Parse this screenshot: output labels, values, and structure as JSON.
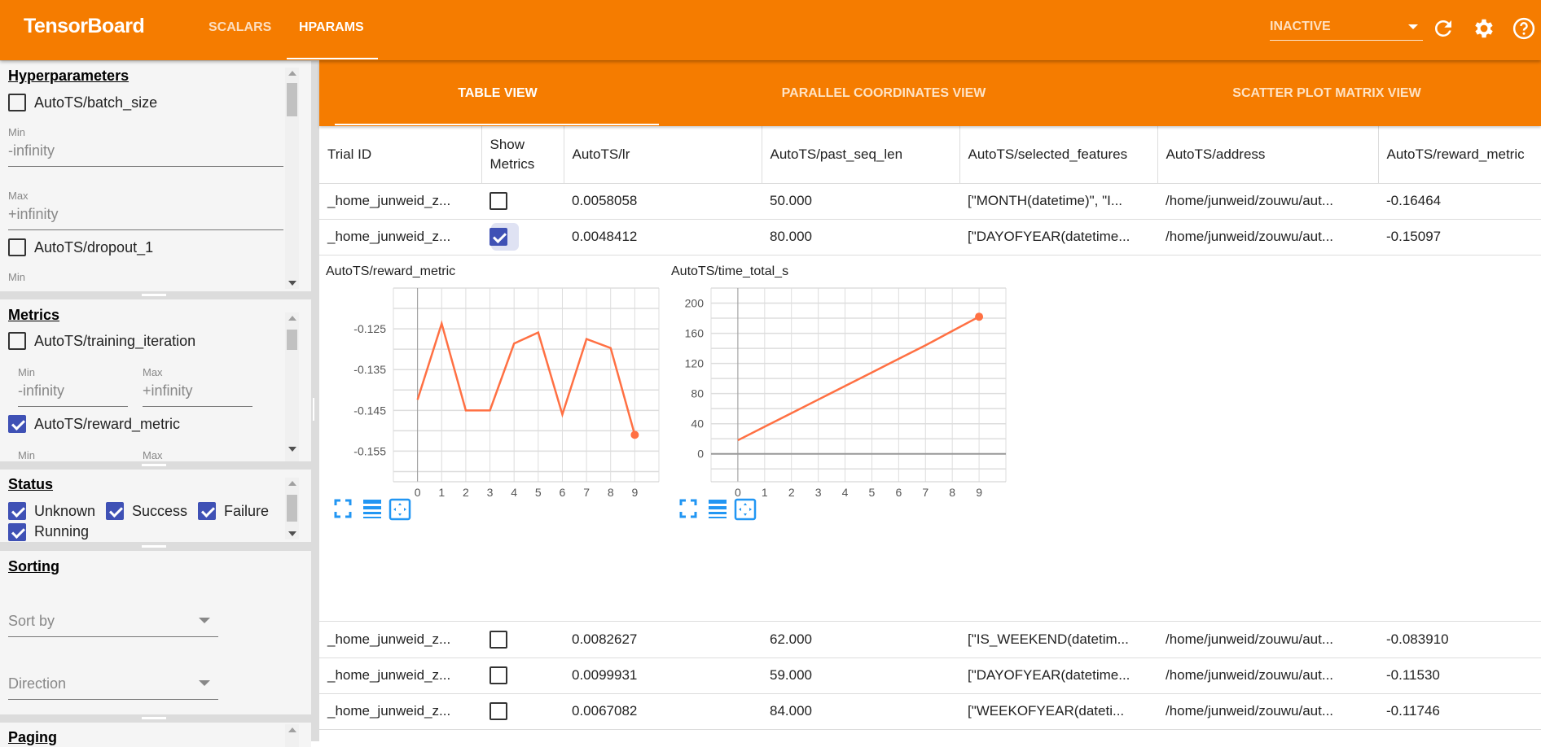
{
  "header": {
    "brand": "TensorBoard",
    "nav": [
      "SCALARS",
      "HPARAMS"
    ],
    "active_nav": "HPARAMS",
    "run_select": "INACTIVE",
    "icons": [
      "refresh-icon",
      "settings-icon",
      "help-icon"
    ]
  },
  "sidebar": {
    "hyperparameters": {
      "title": "Hyperparameters",
      "items": [
        {
          "label": "AutoTS/batch_size",
          "checked": false,
          "min_label": "Min",
          "min_value": "-infinity",
          "max_label": "Max",
          "max_value": "+infinity"
        },
        {
          "label": "AutoTS/dropout_1",
          "checked": false,
          "min_label": "Min"
        }
      ]
    },
    "metrics": {
      "title": "Metrics",
      "items": [
        {
          "label": "AutoTS/training_iteration",
          "checked": false,
          "min_label": "Min",
          "min_value": "-infinity",
          "max_label": "Max",
          "max_value": "+infinity"
        },
        {
          "label": "AutoTS/reward_metric",
          "checked": true,
          "min_label": "Min",
          "max_label": "Max"
        }
      ]
    },
    "status": {
      "title": "Status",
      "items": [
        {
          "label": "Unknown",
          "checked": true
        },
        {
          "label": "Success",
          "checked": true
        },
        {
          "label": "Failure",
          "checked": true
        },
        {
          "label": "Running",
          "checked": true
        }
      ]
    },
    "sorting": {
      "title": "Sorting",
      "sort_by": "Sort by",
      "direction": "Direction"
    },
    "paging": {
      "title": "Paging"
    }
  },
  "views": {
    "tabs": [
      "TABLE VIEW",
      "PARALLEL COORDINATES VIEW",
      "SCATTER PLOT MATRIX VIEW"
    ],
    "active": "TABLE VIEW"
  },
  "table": {
    "columns": [
      "Trial ID",
      "Show Metrics",
      "AutoTS/lr",
      "AutoTS/past_seq_len",
      "AutoTS/selected_features",
      "AutoTS/address",
      "AutoTS/reward_metric"
    ],
    "rows": [
      {
        "trial": "_home_junweid_z...",
        "show": false,
        "lr": "0.0058058",
        "past_seq_len": "50.000",
        "features": "[\"MONTH(datetime)\", \"I...",
        "address": "/home/junweid/zouwu/aut...",
        "reward": "-0.16464"
      },
      {
        "trial": "_home_junweid_z...",
        "show": true,
        "lr": "0.0048412",
        "past_seq_len": "80.000",
        "features": "[\"DAYOFYEAR(datetime...",
        "address": "/home/junweid/zouwu/aut...",
        "reward": "-0.15097"
      },
      {
        "trial": "_home_junweid_z...",
        "show": false,
        "lr": "0.0082627",
        "past_seq_len": "62.000",
        "features": "[\"IS_WEEKEND(datetim...",
        "address": "/home/junweid/zouwu/aut...",
        "reward": "-0.083910"
      },
      {
        "trial": "_home_junweid_z...",
        "show": false,
        "lr": "0.0099931",
        "past_seq_len": "59.000",
        "features": "[\"DAYOFYEAR(datetime...",
        "address": "/home/junweid/zouwu/aut...",
        "reward": "-0.11530"
      },
      {
        "trial": "_home_junweid_z...",
        "show": false,
        "lr": "0.0067082",
        "past_seq_len": "84.000",
        "features": "[\"WEEKOFYEAR(dateti...",
        "address": "/home/junweid/zouwu/aut...",
        "reward": "-0.11746"
      }
    ]
  },
  "colors": {
    "brand": "#f57c00",
    "checkbox": "#3f51b5",
    "series": "#ff7043",
    "chart_icons": "#2196f3"
  },
  "chart_data": [
    {
      "type": "line",
      "title": "AutoTS/reward_metric",
      "x": [
        0,
        1,
        2,
        3,
        4,
        5,
        6,
        7,
        8,
        9
      ],
      "y": [
        -0.1424,
        -0.1237,
        -0.145,
        -0.145,
        -0.1286,
        -0.1259,
        -0.146,
        -0.1275,
        -0.1297,
        -0.151
      ],
      "xlim": [
        -1,
        10
      ],
      "ylim": [
        -0.1625,
        -0.115
      ],
      "xticks": [
        "0",
        "1",
        "2",
        "3",
        "4",
        "5",
        "6",
        "7",
        "8",
        "9"
      ],
      "yticks": [
        "-0.125",
        "-0.135",
        "-0.145",
        "-0.155"
      ],
      "ytick_values": [
        -0.125,
        -0.135,
        -0.145,
        -0.155
      ],
      "grid": true
    },
    {
      "type": "line",
      "title": "AutoTS/time_total_s",
      "x": [
        0,
        1,
        2,
        3,
        4,
        5,
        6,
        7,
        8,
        9
      ],
      "y": [
        18,
        36,
        54,
        72,
        90,
        108,
        126,
        144,
        163,
        182
      ],
      "xlim": [
        -1,
        10
      ],
      "ylim": [
        -37,
        220
      ],
      "xticks": [
        "0",
        "1",
        "2",
        "3",
        "4",
        "5",
        "6",
        "7",
        "8",
        "9"
      ],
      "yticks": [
        "200",
        "160",
        "120",
        "80",
        "40",
        "0"
      ],
      "ytick_values": [
        200,
        160,
        120,
        80,
        40,
        0
      ],
      "grid": true
    }
  ]
}
